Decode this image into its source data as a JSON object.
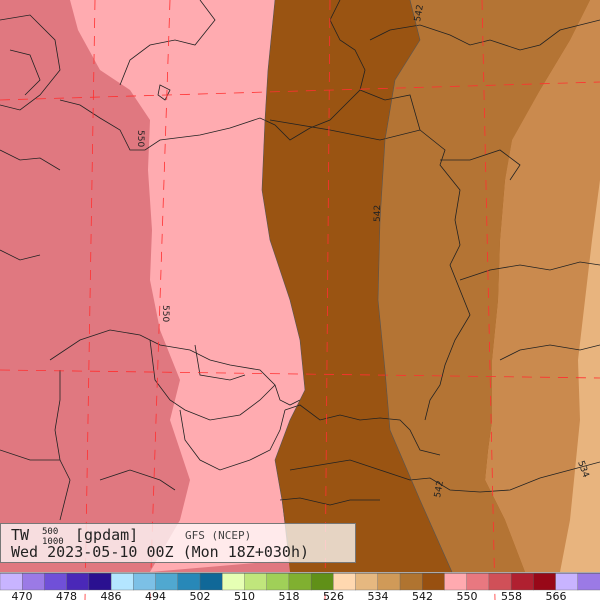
{
  "map": {
    "contours": [
      {
        "value": "550",
        "label": "550"
      },
      {
        "value": "542",
        "label": "542"
      },
      {
        "value": "534",
        "label": "534"
      }
    ],
    "contour_labels": [
      "550",
      "550",
      "542",
      "542",
      "542",
      "534"
    ]
  },
  "info": {
    "parameter": "TW",
    "superscript": "500",
    "subscript": "1000",
    "unit": "[gpdam]",
    "model": "GFS (NCEP)",
    "valid_time": "Wed 2023-05-10 00Z (Mon 18Z+030h)"
  },
  "legend": {
    "colors": [
      "#c8b4ff",
      "#9b7ae6",
      "#7050d8",
      "#4a28b8",
      "#2a1090",
      "#b4e6ff",
      "#7cc0e6",
      "#50a8d0",
      "#2888b8",
      "#106898",
      "#e6ffb4",
      "#c0e67c",
      "#a0d058",
      "#80b030",
      "#609018",
      "#ffd8b0",
      "#e6b880",
      "#d09a58",
      "#b07430",
      "#985010",
      "#ffaab0",
      "#e87880",
      "#d05058",
      "#b02030",
      "#980818",
      "#c8b4ff",
      "#9b7ae6"
    ],
    "labels": [
      "470",
      "478",
      "486",
      "494",
      "502",
      "510",
      "518",
      "526",
      "534",
      "542",
      "550",
      "558",
      "566"
    ]
  }
}
